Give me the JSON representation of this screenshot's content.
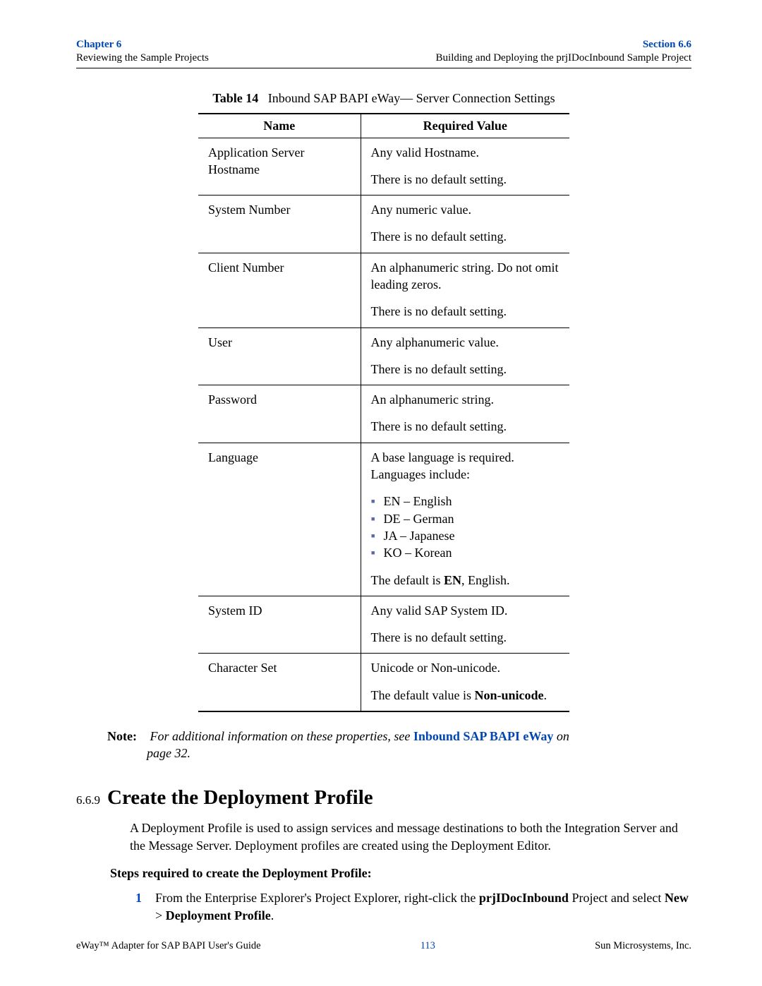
{
  "header": {
    "chapter": "Chapter 6",
    "chapter_sub": "Reviewing the Sample Projects",
    "section": "Section 6.6",
    "section_sub": "Building and Deploying the prjIDocInbound Sample Project",
    "accent_color": "#0047b3"
  },
  "table": {
    "label": "Table 14",
    "title": "Inbound SAP BAPI eWay— Server Connection Settings",
    "columns": [
      "Name",
      "Required Value"
    ],
    "rows": [
      {
        "name": "Application Server Hostname",
        "value_lines": [
          "Any valid Hostname."
        ],
        "default": "There is no default setting."
      },
      {
        "name": "System Number",
        "value_lines": [
          "Any numeric value."
        ],
        "default": "There is no default setting."
      },
      {
        "name": "Client Number",
        "value_lines": [
          "An alphanumeric string. Do not omit leading zeros."
        ],
        "default": "There is no default setting."
      },
      {
        "name": "User",
        "value_lines": [
          "Any alphanumeric value."
        ],
        "default": "There is no default setting."
      },
      {
        "name": "Password",
        "value_lines": [
          "An alphanumeric string."
        ],
        "default": "There is no default setting."
      },
      {
        "name": "Language",
        "value_lines": [
          "A base language is required. Languages include:"
        ],
        "list": [
          "EN – English",
          "DE – German",
          "JA – Japanese",
          "KO – Korean"
        ],
        "default_prefix": "The default is ",
        "default_bold": "EN",
        "default_suffix": ", English."
      },
      {
        "name": "System ID",
        "value_lines": [
          "Any valid SAP System ID."
        ],
        "default": "There is no default setting."
      },
      {
        "name": "Character Set",
        "value_lines": [
          "Unicode or Non-unicode."
        ],
        "default_prefix": "The default value is ",
        "default_bold": "Non-unicode",
        "default_suffix": "."
      }
    ]
  },
  "note": {
    "label": "Note:",
    "text_before": "For additional information on these properties, see ",
    "link": "Inbound SAP BAPI eWay",
    "text_after_1": " on",
    "text_after_2": "page 32."
  },
  "section": {
    "number": "6.6.9",
    "title": "Create the Deployment Profile",
    "para": "A Deployment Profile is used to assign services and message destinations to both the Integration Server and the Message Server. Deployment profiles are created using the Deployment Editor.",
    "steps_header": "Steps required to create the Deployment Profile:",
    "step1_num": "1",
    "step1_a": "From the Enterprise Explorer's Project Explorer, right-click the ",
    "step1_bold1": "prjIDocInbound",
    "step1_b": " Project and select ",
    "step1_bold2": "New",
    "step1_c": " > ",
    "step1_bold3": "Deployment Profile",
    "step1_d": "."
  },
  "footer": {
    "left": "eWay™ Adapter for SAP BAPI User's Guide",
    "page": "113",
    "right": "Sun Microsystems, Inc."
  }
}
